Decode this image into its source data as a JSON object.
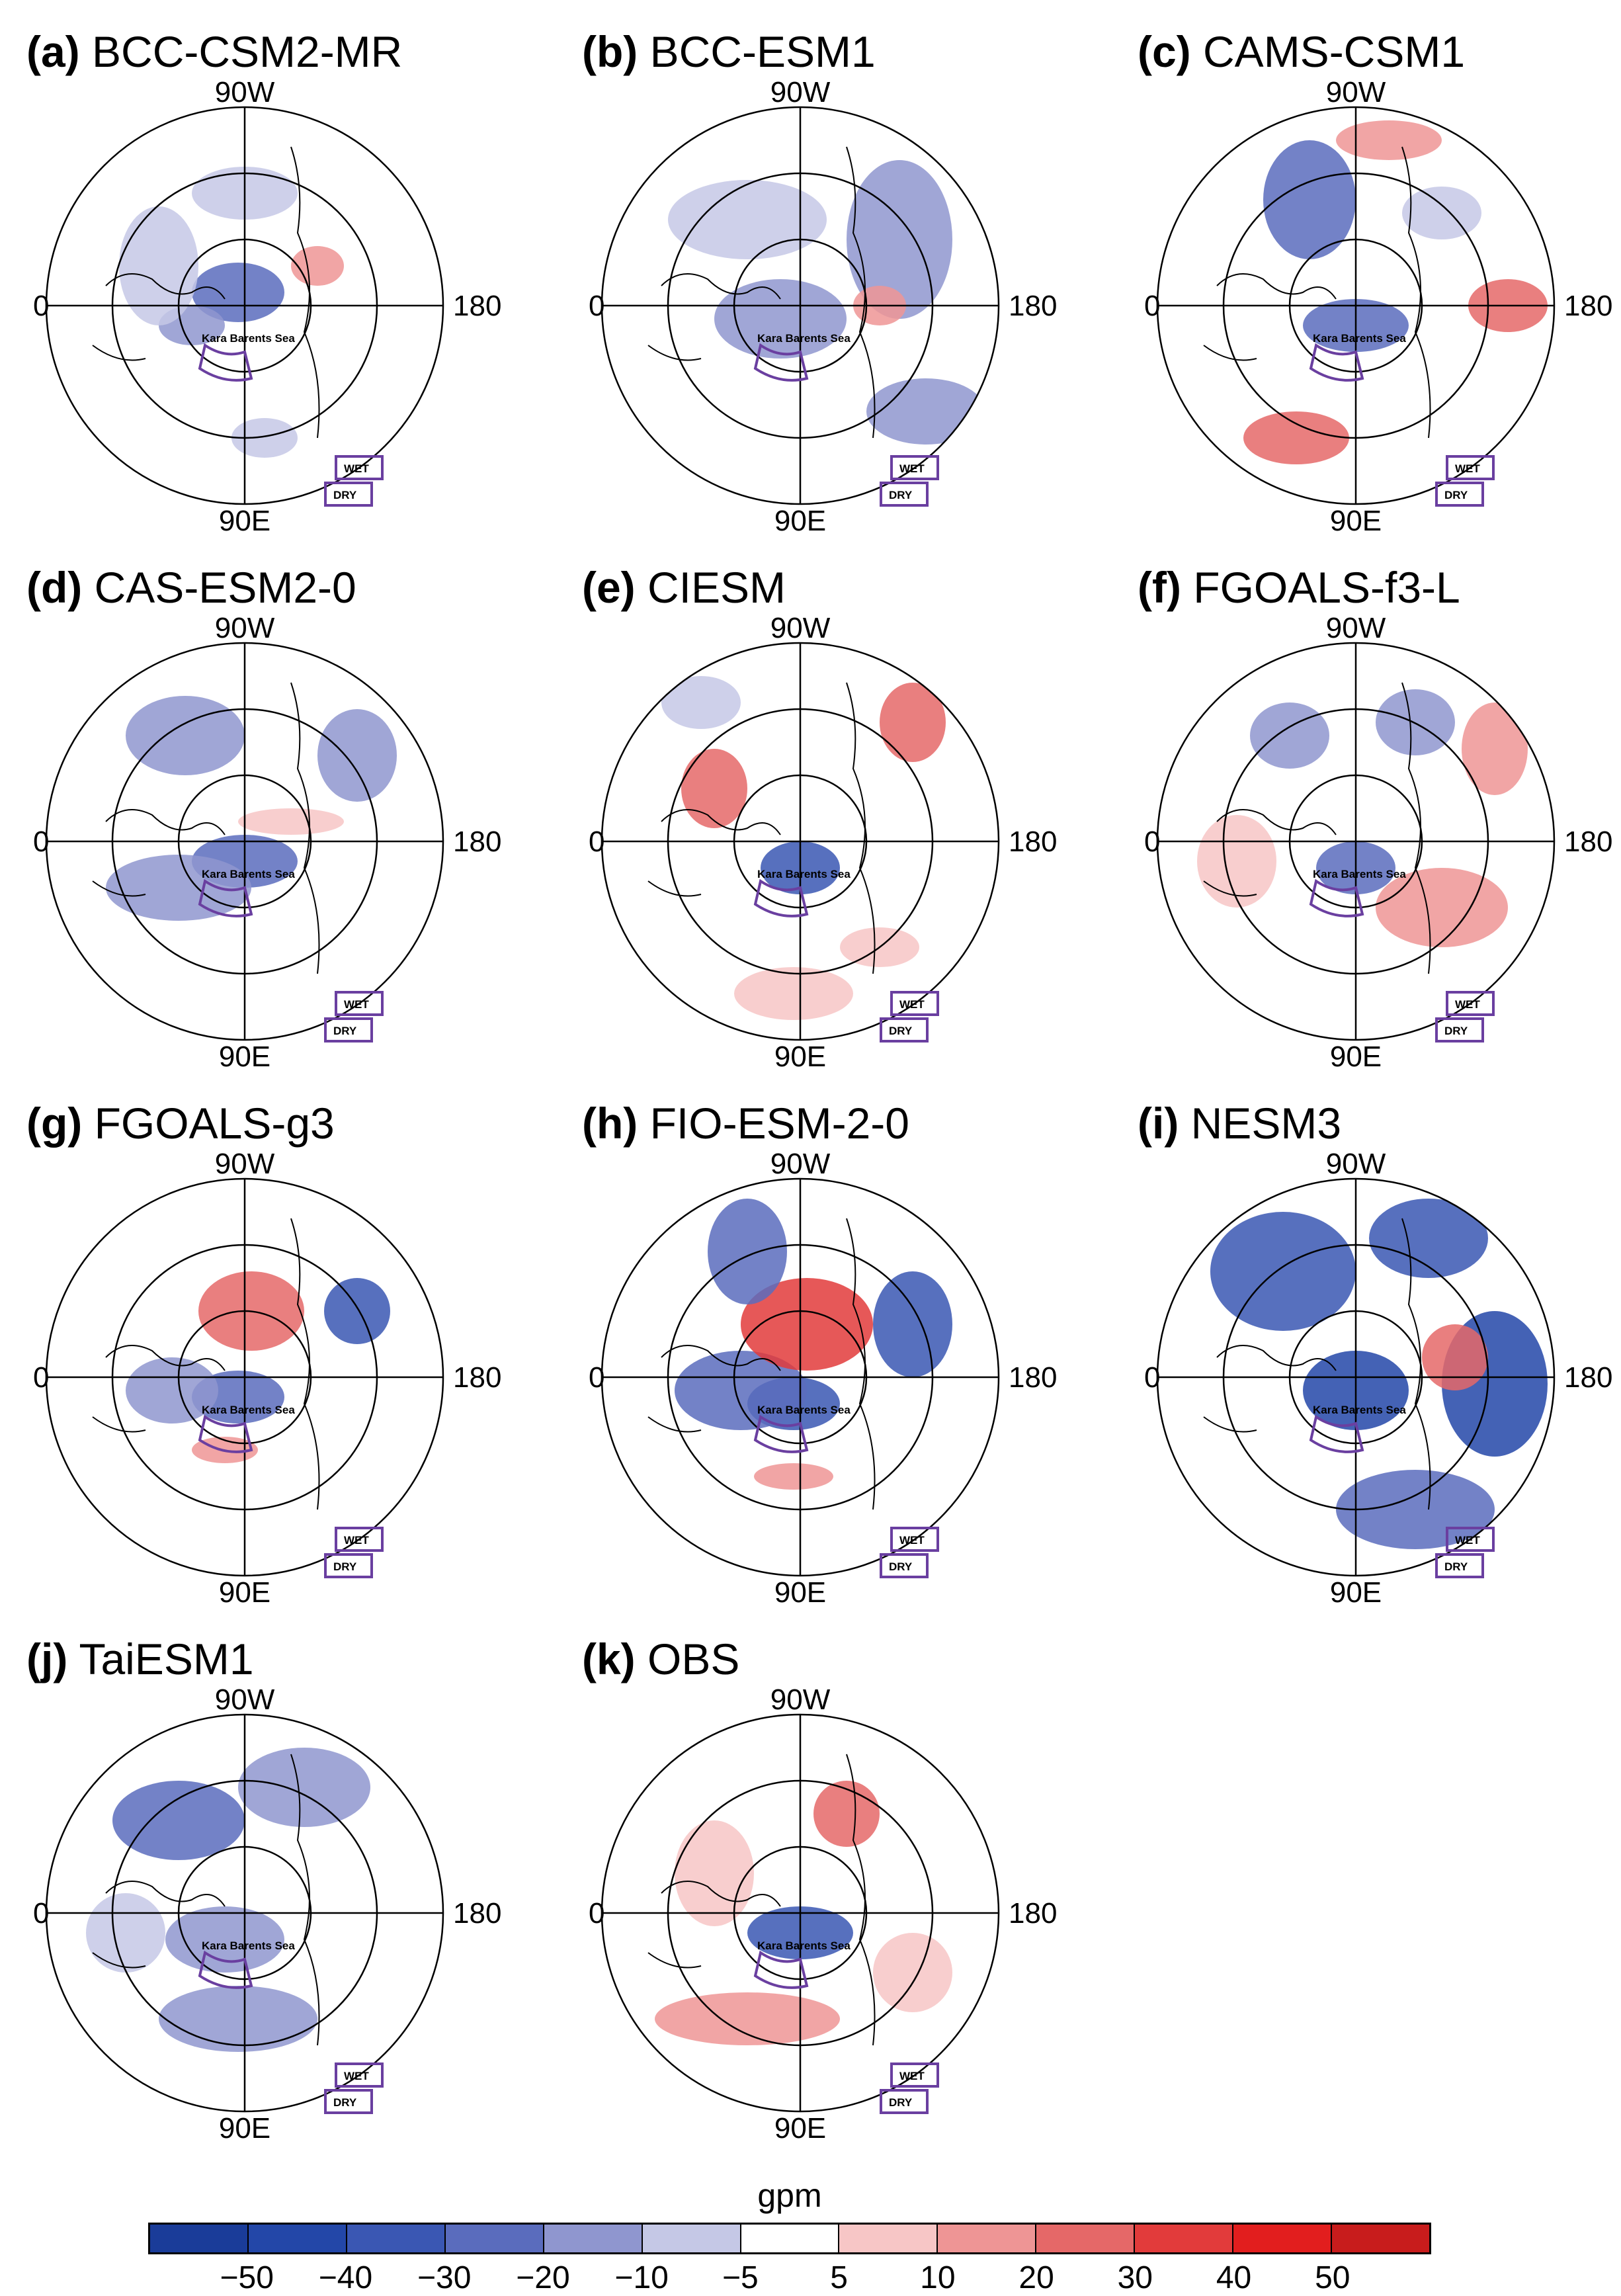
{
  "figure": {
    "panels": [
      {
        "letter": "(a)",
        "name": "BCC-CSM2-MR"
      },
      {
        "letter": "(b)",
        "name": "BCC-ESM1"
      },
      {
        "letter": "(c)",
        "name": "CAMS-CSM1"
      },
      {
        "letter": "(d)",
        "name": "CAS-ESM2-0"
      },
      {
        "letter": "(e)",
        "name": "CIESM"
      },
      {
        "letter": "(f)",
        "name": "FGOALS-f3-L"
      },
      {
        "letter": "(g)",
        "name": "FGOALS-g3"
      },
      {
        "letter": "(h)",
        "name": "FIO-ESM-2-0"
      },
      {
        "letter": "(i)",
        "name": "NESM3"
      },
      {
        "letter": "(j)",
        "name": "TaiESM1"
      },
      {
        "letter": "(k)",
        "name": "OBS"
      }
    ],
    "axis_labels": {
      "top": "90W",
      "left": "0",
      "right": "180",
      "bottom": "90E"
    },
    "map_labels": {
      "sea": "Kara Barents Sea",
      "wet_box": "WET",
      "dry_box": "DRY"
    }
  },
  "colorbar": {
    "unit": "gpm",
    "ticks": [
      "−50",
      "−40",
      "−30",
      "−20",
      "−10",
      "−5",
      "5",
      "10",
      "20",
      "30",
      "40",
      "50"
    ],
    "colors": [
      "#1a3c99",
      "#2347a8",
      "#3a57b3",
      "#5a6cbd",
      "#8f96cf",
      "#c5c8e6",
      "#ffffff",
      "#f7c6c6",
      "#ee9595",
      "#e56868",
      "#e23b3b",
      "#e21e1e",
      "#c81c1c"
    ]
  }
}
